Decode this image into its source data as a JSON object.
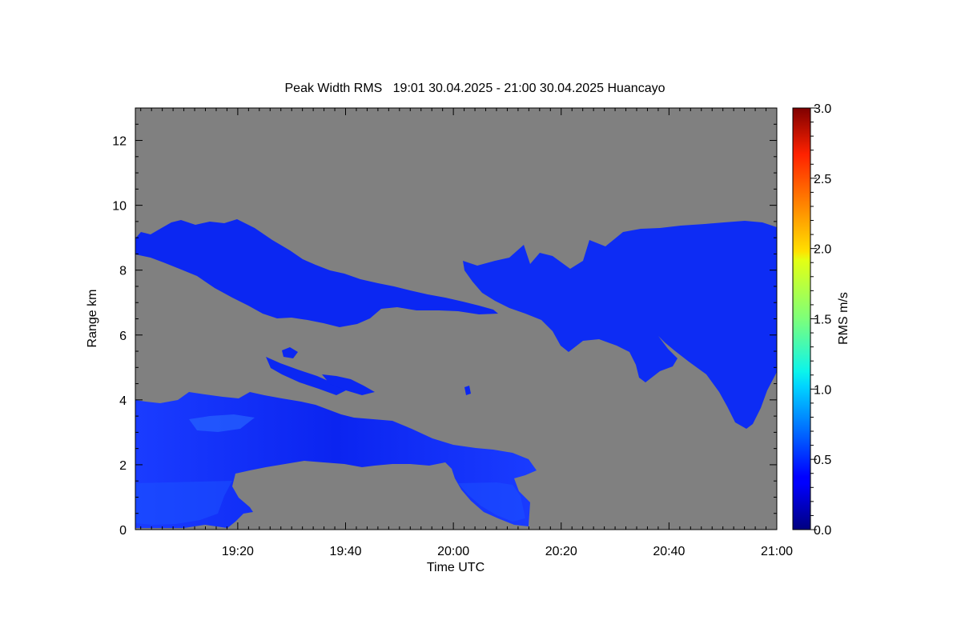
{
  "chart_data": {
    "type": "heatmap",
    "title": "Peak Width RMS   19:01 30.04.2025 - 21:00 30.04.2025 Huancayo",
    "xlabel": "Time UTC",
    "ylabel": "Range km",
    "x_range": [
      "19:01",
      "21:00"
    ],
    "x_ticks": [
      "19:20",
      "19:40",
      "20:00",
      "20:20",
      "20:40",
      "21:00"
    ],
    "ylim": [
      0,
      13
    ],
    "y_ticks": [
      "0",
      "2",
      "4",
      "6",
      "8",
      "10",
      "12"
    ],
    "colorbar": {
      "label": "RMS m/s",
      "range": [
        0.0,
        3.0
      ],
      "ticks": [
        "0.0",
        "0.5",
        "1.0",
        "1.5",
        "2.0",
        "2.5",
        "3.0"
      ],
      "colormap": "jet"
    },
    "background_color": "#808080",
    "typical_value": 0.3,
    "regions": [
      {
        "name": "upper-layer-west",
        "time_start": "19:01",
        "time_end": "20:10",
        "range_bottom_km": 6.3,
        "range_top_km": 9.5,
        "typical_rms": 0.3
      },
      {
        "name": "upper-layer-east",
        "time_start": "20:03",
        "time_end": "21:00",
        "range_bottom_km": 3.1,
        "range_top_km": 9.5,
        "typical_rms": 0.3
      },
      {
        "name": "mid-level-streaks",
        "time_start": "19:26",
        "time_end": "19:46",
        "range_bottom_km": 4.1,
        "range_top_km": 5.6,
        "typical_rms": 0.3
      },
      {
        "name": "lower-layer",
        "time_start": "19:01",
        "time_end": "20:16",
        "range_bottom_km": 0.0,
        "range_top_km": 4.3,
        "typical_rms": 0.35
      }
    ]
  }
}
